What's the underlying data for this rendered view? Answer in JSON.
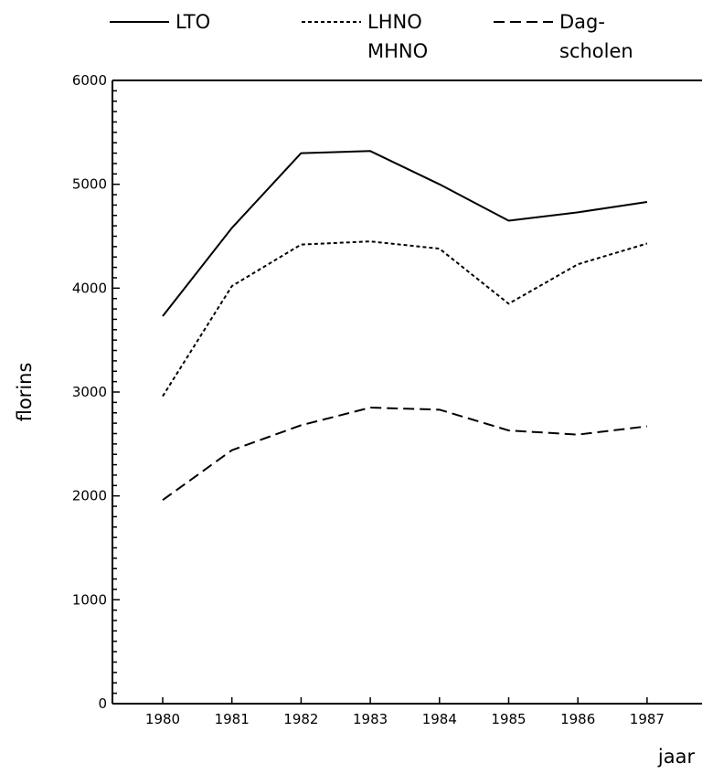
{
  "chart_data": {
    "type": "line",
    "xlabel": "jaar",
    "ylabel": "florins",
    "categories": [
      "1980",
      "1981",
      "1982",
      "1983",
      "1984",
      "1985",
      "1986",
      "1987"
    ],
    "ylim": [
      0,
      6000
    ],
    "yticks": [
      0,
      1000,
      2000,
      3000,
      4000,
      5000,
      6000
    ],
    "grid": false,
    "legend_position": "top",
    "series": [
      {
        "name": "LTO",
        "legend_lines": [
          "LTO"
        ],
        "style": "solid",
        "values": [
          3730,
          4580,
          5300,
          5320,
          5000,
          4650,
          4730,
          4830
        ]
      },
      {
        "name": "LHNO MHNO",
        "legend_lines": [
          "LHNO",
          "MHNO"
        ],
        "style": "dotted",
        "values": [
          2960,
          4020,
          4420,
          4450,
          4380,
          3850,
          4230,
          4430
        ]
      },
      {
        "name": "Dag- scholen",
        "legend_lines": [
          "Dag-",
          "scholen"
        ],
        "style": "dashed",
        "values": [
          1960,
          2440,
          2680,
          2850,
          2830,
          2630,
          2590,
          2670
        ]
      }
    ],
    "line_color": "#000000"
  }
}
